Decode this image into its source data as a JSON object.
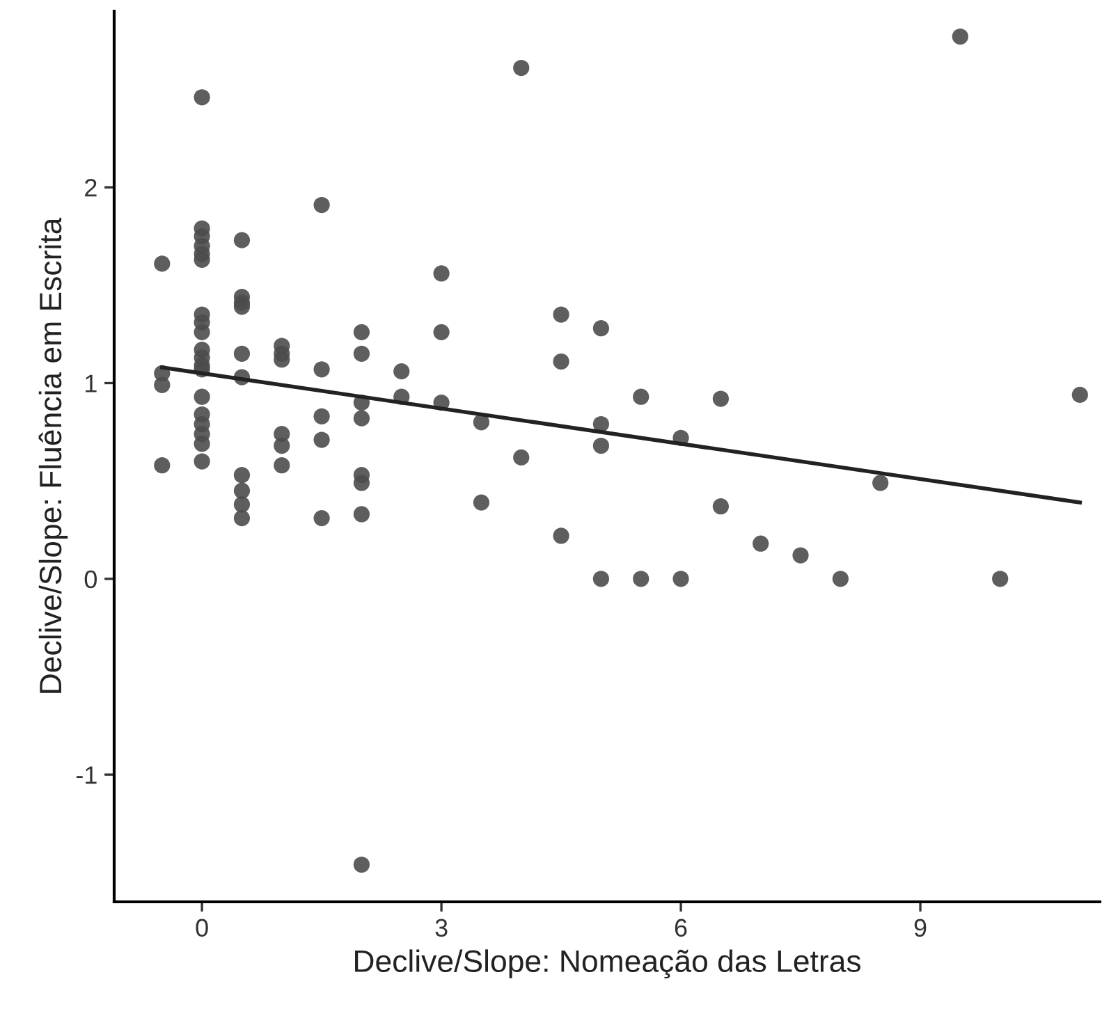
{
  "chart_data": {
    "type": "scatter",
    "xlabel": "Declive/Slope: Nomeação das Letras",
    "ylabel": "Declive/Slope: Fluência em Escrita",
    "xlim": [
      -1.1,
      11.25
    ],
    "ylim": [
      -1.65,
      2.9
    ],
    "xticks": [
      0,
      3,
      6,
      9
    ],
    "yticks": [
      -1,
      0,
      1,
      2
    ],
    "grid": false,
    "marker": "circle",
    "series": [
      {
        "color": "#4d4d4d",
        "x": [
          -0.5,
          -0.5,
          -0.5,
          -0.5,
          0,
          0,
          0,
          0,
          0,
          0,
          0,
          0,
          0,
          0,
          0,
          0,
          0,
          0,
          0,
          0,
          0,
          0,
          0,
          0.5,
          0.5,
          0.5,
          0.5,
          0.5,
          0.5,
          0.5,
          0.5,
          0.5,
          0.5,
          1,
          1,
          1,
          1,
          1,
          1,
          1.5,
          1.5,
          1.5,
          1.5,
          1.5,
          2,
          2,
          2,
          2,
          2,
          2,
          2,
          2,
          2.5,
          2.5,
          3,
          3,
          3,
          3.5,
          3.5,
          4,
          4,
          4.5,
          4.5,
          4.5,
          5,
          5,
          5,
          5,
          5.5,
          5.5,
          6,
          6,
          6.5,
          6.5,
          7,
          7.5,
          8,
          8.5,
          9.5,
          10,
          11
        ],
        "values": [
          1.61,
          1.05,
          0.99,
          0.58,
          2.46,
          1.79,
          1.75,
          1.7,
          1.66,
          1.63,
          1.35,
          1.31,
          1.26,
          1.17,
          1.13,
          1.09,
          1.07,
          0.93,
          0.84,
          0.79,
          0.74,
          0.69,
          0.6,
          1.73,
          1.44,
          1.41,
          1.39,
          1.15,
          1.03,
          0.53,
          0.45,
          0.38,
          0.31,
          1.19,
          1.15,
          1.12,
          0.74,
          0.68,
          0.58,
          1.91,
          1.07,
          0.83,
          0.71,
          0.31,
          1.26,
          1.15,
          0.9,
          0.82,
          0.53,
          0.49,
          0.33,
          -1.46,
          1.06,
          0.93,
          1.56,
          1.26,
          0.9,
          0.8,
          0.39,
          2.61,
          0.62,
          1.35,
          1.11,
          0.22,
          1.28,
          0.79,
          0.68,
          0,
          0.93,
          0,
          0.72,
          0,
          0.92,
          0.37,
          0.18,
          0.12,
          0,
          0.49,
          2.77,
          0,
          0.94
        ]
      },
      {
        "type": "line",
        "color": "#222222",
        "x": [
          -0.5,
          11
        ],
        "values": [
          1.08,
          0.39
        ],
        "marker": "none",
        "line_style": "solid"
      }
    ]
  }
}
